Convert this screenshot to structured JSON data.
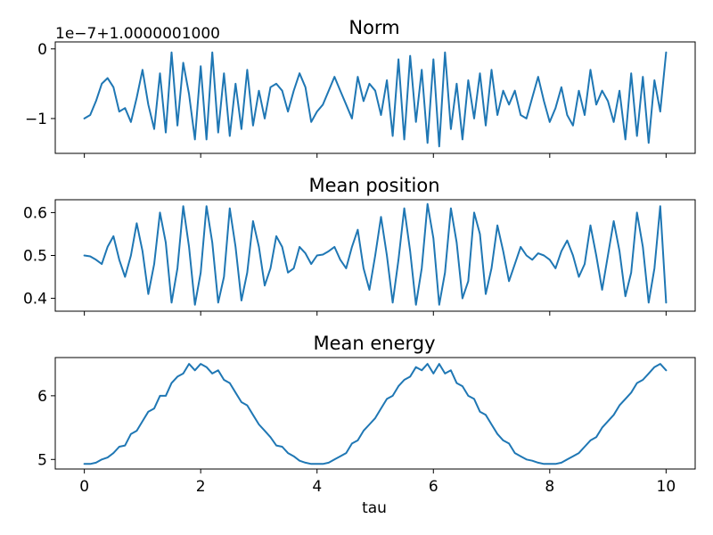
{
  "chart_data": [
    {
      "type": "line",
      "title": "Norm",
      "offset_label": "1e−7+1.0000001000",
      "xlim": [
        -0.5,
        10.5
      ],
      "ylim": [
        -1.5,
        0.1
      ],
      "xticks": [
        0,
        2,
        4,
        6,
        8,
        10
      ],
      "show_xticklabels": false,
      "yticks": [
        {
          "value": 0,
          "label": "0"
        },
        {
          "value": -1,
          "label": "−1"
        }
      ],
      "color": "#1f77b4",
      "x": [
        0,
        0.1,
        0.2,
        0.3,
        0.4,
        0.5,
        0.6,
        0.7,
        0.8,
        0.9,
        1.0,
        1.1,
        1.2,
        1.3,
        1.4,
        1.5,
        1.6,
        1.7,
        1.8,
        1.9,
        2.0,
        2.1,
        2.2,
        2.3,
        2.4,
        2.5,
        2.6,
        2.7,
        2.8,
        2.9,
        3.0,
        3.1,
        3.2,
        3.3,
        3.4,
        3.5,
        3.6,
        3.7,
        3.8,
        3.9,
        4.0,
        4.1,
        4.2,
        4.3,
        4.4,
        4.5,
        4.6,
        4.7,
        4.8,
        4.9,
        5.0,
        5.1,
        5.2,
        5.3,
        5.4,
        5.5,
        5.6,
        5.7,
        5.8,
        5.9,
        6.0,
        6.1,
        6.2,
        6.3,
        6.4,
        6.5,
        6.6,
        6.7,
        6.8,
        6.9,
        7.0,
        7.1,
        7.2,
        7.3,
        7.4,
        7.5,
        7.6,
        7.7,
        7.8,
        7.9,
        8.0,
        8.1,
        8.2,
        8.3,
        8.4,
        8.5,
        8.6,
        8.7,
        8.8,
        8.9,
        9.0,
        9.1,
        9.2,
        9.3,
        9.4,
        9.5,
        9.6,
        9.7,
        9.8,
        9.9,
        10.0
      ],
      "y": [
        -1.0,
        -0.95,
        -0.75,
        -0.5,
        -0.42,
        -0.55,
        -0.9,
        -0.85,
        -1.05,
        -0.7,
        -0.3,
        -0.8,
        -1.15,
        -0.35,
        -1.2,
        -0.05,
        -1.1,
        -0.2,
        -0.65,
        -1.3,
        -0.25,
        -1.3,
        -0.05,
        -1.2,
        -0.35,
        -1.25,
        -0.5,
        -1.15,
        -0.3,
        -1.1,
        -0.6,
        -1.0,
        -0.55,
        -0.5,
        -0.6,
        -0.9,
        -0.6,
        -0.35,
        -0.55,
        -1.05,
        -0.9,
        -0.8,
        -0.6,
        -0.4,
        -0.6,
        -0.8,
        -1.0,
        -0.4,
        -0.75,
        -0.5,
        -0.6,
        -0.95,
        -0.45,
        -1.25,
        -0.15,
        -1.3,
        -0.1,
        -1.05,
        -0.3,
        -1.35,
        -0.15,
        -1.4,
        -0.05,
        -1.15,
        -0.5,
        -1.3,
        -0.45,
        -1.0,
        -0.35,
        -1.1,
        -0.3,
        -0.95,
        -0.6,
        -0.8,
        -0.6,
        -0.95,
        -1.0,
        -0.7,
        -0.4,
        -0.75,
        -1.05,
        -0.85,
        -0.55,
        -0.95,
        -1.1,
        -0.6,
        -0.95,
        -0.3,
        -0.8,
        -0.6,
        -0.75,
        -1.05,
        -0.6,
        -1.3,
        -0.35,
        -1.25,
        -0.4,
        -1.35,
        -0.45,
        -0.9,
        -0.05
      ]
    },
    {
      "type": "line",
      "title": "Mean position",
      "xlim": [
        -0.5,
        10.5
      ],
      "ylim": [
        0.37,
        0.63
      ],
      "xticks": [
        0,
        2,
        4,
        6,
        8,
        10
      ],
      "show_xticklabels": false,
      "yticks": [
        {
          "value": 0.6,
          "label": "0.6"
        },
        {
          "value": 0.5,
          "label": "0.5"
        },
        {
          "value": 0.4,
          "label": "0.4"
        }
      ],
      "color": "#1f77b4",
      "x": [
        0,
        0.1,
        0.2,
        0.3,
        0.4,
        0.5,
        0.6,
        0.7,
        0.8,
        0.9,
        1.0,
        1.1,
        1.2,
        1.3,
        1.4,
        1.5,
        1.6,
        1.7,
        1.8,
        1.9,
        2.0,
        2.1,
        2.2,
        2.3,
        2.4,
        2.5,
        2.6,
        2.7,
        2.8,
        2.9,
        3.0,
        3.1,
        3.2,
        3.3,
        3.4,
        3.5,
        3.6,
        3.7,
        3.8,
        3.9,
        4.0,
        4.1,
        4.2,
        4.3,
        4.4,
        4.5,
        4.6,
        4.7,
        4.8,
        4.9,
        5.0,
        5.1,
        5.2,
        5.3,
        5.4,
        5.5,
        5.6,
        5.7,
        5.8,
        5.9,
        6.0,
        6.1,
        6.2,
        6.3,
        6.4,
        6.5,
        6.6,
        6.7,
        6.8,
        6.9,
        7.0,
        7.1,
        7.2,
        7.3,
        7.4,
        7.5,
        7.6,
        7.7,
        7.8,
        7.9,
        8.0,
        8.1,
        8.2,
        8.3,
        8.4,
        8.5,
        8.6,
        8.7,
        8.8,
        8.9,
        9.0,
        9.1,
        9.2,
        9.3,
        9.4,
        9.5,
        9.6,
        9.7,
        9.8,
        9.9,
        10.0
      ],
      "y": [
        0.5,
        0.498,
        0.49,
        0.48,
        0.52,
        0.545,
        0.49,
        0.45,
        0.5,
        0.575,
        0.51,
        0.41,
        0.48,
        0.6,
        0.53,
        0.39,
        0.47,
        0.615,
        0.52,
        0.385,
        0.46,
        0.615,
        0.53,
        0.39,
        0.45,
        0.61,
        0.52,
        0.395,
        0.46,
        0.58,
        0.52,
        0.43,
        0.47,
        0.545,
        0.52,
        0.46,
        0.47,
        0.52,
        0.505,
        0.48,
        0.5,
        0.502,
        0.51,
        0.52,
        0.49,
        0.47,
        0.52,
        0.56,
        0.47,
        0.42,
        0.5,
        0.59,
        0.5,
        0.39,
        0.49,
        0.61,
        0.51,
        0.385,
        0.47,
        0.62,
        0.54,
        0.385,
        0.46,
        0.61,
        0.53,
        0.4,
        0.44,
        0.6,
        0.55,
        0.41,
        0.47,
        0.57,
        0.51,
        0.44,
        0.48,
        0.52,
        0.5,
        0.49,
        0.505,
        0.5,
        0.49,
        0.47,
        0.51,
        0.535,
        0.5,
        0.45,
        0.48,
        0.57,
        0.5,
        0.42,
        0.5,
        0.58,
        0.51,
        0.405,
        0.46,
        0.6,
        0.52,
        0.39,
        0.47,
        0.615,
        0.39
      ]
    },
    {
      "type": "line",
      "title": "Mean energy",
      "xlabel": "tau",
      "xlim": [
        -0.5,
        10.5
      ],
      "ylim": [
        4.85,
        6.6
      ],
      "xticks": [
        0,
        2,
        4,
        6,
        8,
        10
      ],
      "show_xticklabels": true,
      "xticklabels": [
        "0",
        "2",
        "4",
        "6",
        "8",
        "10"
      ],
      "yticks": [
        {
          "value": 6,
          "label": "6"
        },
        {
          "value": 5,
          "label": "5"
        }
      ],
      "color": "#1f77b4",
      "x": [
        0,
        0.1,
        0.2,
        0.3,
        0.4,
        0.5,
        0.6,
        0.7,
        0.8,
        0.9,
        1.0,
        1.1,
        1.2,
        1.3,
        1.4,
        1.5,
        1.6,
        1.7,
        1.8,
        1.9,
        2.0,
        2.1,
        2.2,
        2.3,
        2.4,
        2.5,
        2.6,
        2.7,
        2.8,
        2.9,
        3.0,
        3.1,
        3.2,
        3.3,
        3.4,
        3.5,
        3.6,
        3.7,
        3.8,
        3.9,
        4.0,
        4.1,
        4.2,
        4.3,
        4.4,
        4.5,
        4.6,
        4.7,
        4.8,
        4.9,
        5.0,
        5.1,
        5.2,
        5.3,
        5.4,
        5.5,
        5.6,
        5.7,
        5.8,
        5.9,
        6.0,
        6.1,
        6.2,
        6.3,
        6.4,
        6.5,
        6.6,
        6.7,
        6.8,
        6.9,
        7.0,
        7.1,
        7.2,
        7.3,
        7.4,
        7.5,
        7.6,
        7.7,
        7.8,
        7.9,
        8.0,
        8.1,
        8.2,
        8.3,
        8.4,
        8.5,
        8.6,
        8.7,
        8.8,
        8.9,
        9.0,
        9.1,
        9.2,
        9.3,
        9.4,
        9.5,
        9.6,
        9.7,
        9.8,
        9.9,
        10.0
      ],
      "y": [
        4.93,
        4.93,
        4.95,
        5.0,
        5.03,
        5.1,
        5.2,
        5.22,
        5.4,
        5.45,
        5.6,
        5.75,
        5.8,
        6.0,
        6.0,
        6.2,
        6.3,
        6.35,
        6.5,
        6.4,
        6.5,
        6.45,
        6.35,
        6.4,
        6.25,
        6.2,
        6.05,
        5.9,
        5.85,
        5.7,
        5.55,
        5.45,
        5.35,
        5.22,
        5.2,
        5.1,
        5.05,
        4.98,
        4.95,
        4.93,
        4.93,
        4.93,
        4.95,
        5.0,
        5.05,
        5.1,
        5.25,
        5.3,
        5.45,
        5.55,
        5.65,
        5.8,
        5.95,
        6.0,
        6.15,
        6.25,
        6.3,
        6.45,
        6.4,
        6.5,
        6.35,
        6.5,
        6.35,
        6.4,
        6.2,
        6.15,
        6.0,
        5.95,
        5.75,
        5.7,
        5.55,
        5.4,
        5.3,
        5.25,
        5.1,
        5.05,
        5.0,
        4.98,
        4.95,
        4.93,
        4.93,
        4.93,
        4.95,
        5.0,
        5.05,
        5.1,
        5.2,
        5.3,
        5.35,
        5.5,
        5.6,
        5.7,
        5.85,
        5.95,
        6.05,
        6.2,
        6.25,
        6.35,
        6.45,
        6.5,
        6.4
      ]
    }
  ]
}
